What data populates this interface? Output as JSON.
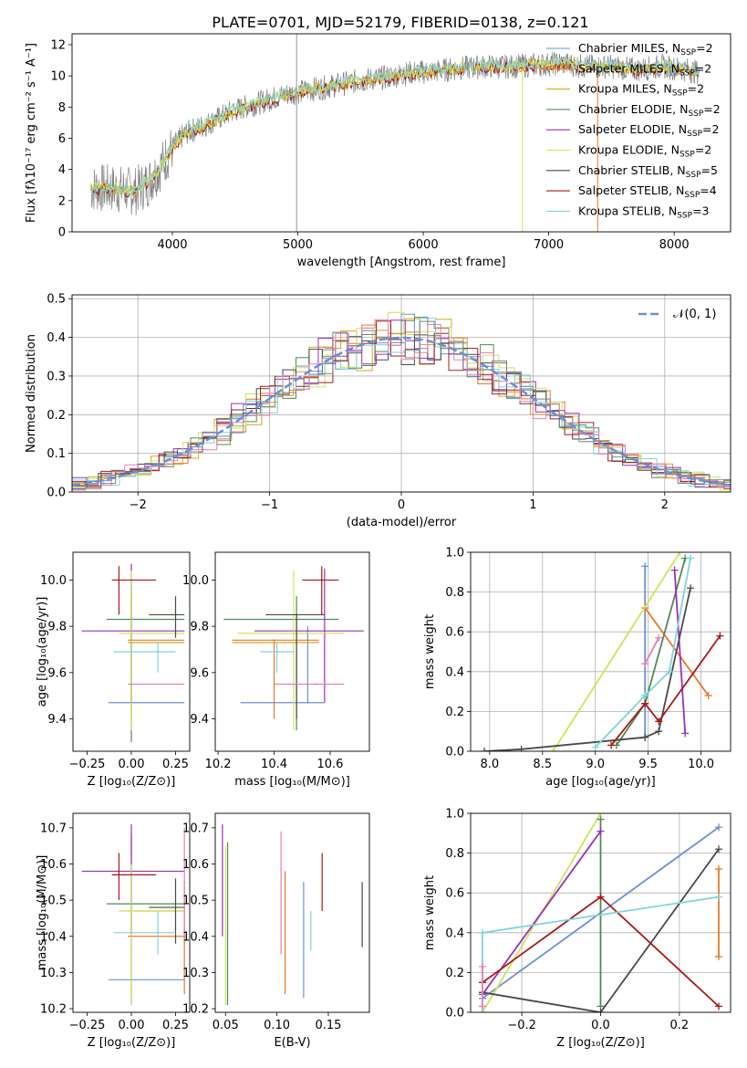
{
  "title": "PLATE=0701, MJD=52179, FIBERID=0138, z=0.121",
  "colors": {
    "Chabrier MILES": "#6a8fd8",
    "Salpeter MILES": "#e8792a",
    "Kroupa MILES": "#d9a521",
    "Chabrier ELODIE": "#4f8a5a",
    "Salpeter ELODIE": "#9b30b8",
    "Kroupa ELODIE": "#cfe35a",
    "Chabrier STELIB": "#4a4a4a",
    "Salpeter STELIB": "#a81a1a",
    "Kroupa STELIB": "#80d4dc",
    "Pink": "#e87fb8",
    "Gray": "#7f7f7f"
  },
  "chart_data": [
    {
      "id": "spectrum",
      "type": "line",
      "title": "PLATE=0701, MJD=52179, FIBERID=0138, z=0.121",
      "xlabel": "wavelength [Angstrom, rest frame]",
      "ylabel": "Flux [fλ10⁻¹⁷ erg cm⁻² s⁻¹ A⁻¹]",
      "xlim": [
        3200,
        8450
      ],
      "ylim": [
        0,
        12.7
      ],
      "xticks": [
        "4000",
        "5000",
        "6000",
        "7000",
        "8000"
      ],
      "yticks": [
        "0",
        "2",
        "4",
        "6",
        "8",
        "10",
        "12"
      ],
      "grid": false,
      "legend_position": "upper right",
      "legend": [
        {
          "label": "Chabrier MILES, N",
          "sub": "SSP",
          "suffix": "=2"
        },
        {
          "label": "Salpeter MILES, N",
          "sub": "SSP",
          "suffix": "=2"
        },
        {
          "label": "Kroupa MILES, N",
          "sub": "SSP",
          "suffix": "=2"
        },
        {
          "label": "Chabrier ELODIE, N",
          "sub": "SSP",
          "suffix": "=2"
        },
        {
          "label": "Salpeter ELODIE, N",
          "sub": "SSP",
          "suffix": "=2"
        },
        {
          "label": "Kroupa ELODIE, N",
          "sub": "SSP",
          "suffix": "=2"
        },
        {
          "label": "Chabrier STELIB, N",
          "sub": "SSP",
          "suffix": "=5"
        },
        {
          "label": "Salpeter STELIB, N",
          "sub": "SSP",
          "suffix": "=4"
        },
        {
          "label": "Kroupa STELIB, N",
          "sub": "SSP",
          "suffix": "=3"
        }
      ],
      "continuum": [
        [
          3350,
          2.8
        ],
        [
          3500,
          2.8
        ],
        [
          3700,
          2.6
        ],
        [
          3800,
          3.1
        ],
        [
          3900,
          4.1
        ],
        [
          4000,
          5.4
        ],
        [
          4100,
          6.3
        ],
        [
          4300,
          7.0
        ],
        [
          4500,
          7.8
        ],
        [
          4700,
          8.3
        ],
        [
          4900,
          8.8
        ],
        [
          5100,
          9.1
        ],
        [
          5300,
          9.4
        ],
        [
          5500,
          9.7
        ],
        [
          5700,
          9.9
        ],
        [
          5900,
          10.2
        ],
        [
          6100,
          10.3
        ],
        [
          6300,
          10.5
        ],
        [
          6500,
          10.6
        ],
        [
          6700,
          10.6
        ],
        [
          6900,
          10.7
        ],
        [
          7100,
          10.8
        ],
        [
          7300,
          10.6
        ],
        [
          7500,
          10.6
        ],
        [
          7700,
          10.4
        ],
        [
          7900,
          10.6
        ],
        [
          8100,
          10.4
        ],
        [
          8200,
          10.2
        ]
      ]
    },
    {
      "id": "residuals",
      "type": "histogram",
      "xlabel": "(data-model)/error",
      "ylabel": "Normed distribution",
      "xlim": [
        -2.5,
        2.5
      ],
      "ylim": [
        0,
        0.51
      ],
      "xticks": [
        "−2",
        "−1",
        "0",
        "1",
        "2"
      ],
      "yticks": [
        "0.0",
        "0.1",
        "0.2",
        "0.3",
        "0.4",
        "0.5"
      ],
      "grid": true,
      "legend_position": "upper right",
      "reference_curve": "𝒩(0, 1)"
    },
    {
      "id": "age_vs_Z",
      "type": "scatter",
      "xlabel": "Z [log₁₀(Z/Z⊙)]",
      "ylabel": "age  [log₁₀(age/yr)]",
      "xlim": [
        -0.33,
        0.33
      ],
      "ylim": [
        9.26,
        10.12
      ],
      "xticks": [
        "−0.25",
        "0.00",
        "0.25"
      ],
      "yticks": [
        "9.4",
        "9.6",
        "9.8",
        "10.0"
      ],
      "points": [
        {
          "c": "Chabrier MILES",
          "x": 0.0,
          "xe": [
            -0.13,
            0.3
          ],
          "y": 9.47,
          "ye": [
            9.47,
            9.47
          ]
        },
        {
          "c": "Salpeter MILES",
          "x": 0.0,
          "xe": [
            -0.02,
            0.3
          ],
          "y": 9.74,
          "ye": [
            9.4,
            9.93
          ]
        },
        {
          "c": "Kroupa MILES",
          "x": 0.0,
          "xe": [
            -0.02,
            0.3
          ],
          "y": 9.73,
          "ye": [
            9.73,
            9.73
          ]
        },
        {
          "c": "Chabrier ELODIE",
          "x": 0.0,
          "xe": [
            -0.14,
            0.3
          ],
          "y": 9.83,
          "ye": [
            9.3,
            10.0
          ]
        },
        {
          "c": "Salpeter ELODIE",
          "x": 0.0,
          "xe": [
            -0.28,
            0.3
          ],
          "y": 9.78,
          "ye": [
            9.47,
            10.07
          ]
        },
        {
          "c": "Kroupa ELODIE",
          "x": 0.0,
          "xe": [
            -0.07,
            0.3
          ],
          "y": 9.77,
          "ye": [
            9.35,
            10.04
          ]
        },
        {
          "c": "Chabrier STELIB",
          "x": 0.25,
          "xe": [
            0.1,
            0.3
          ],
          "y": 9.85,
          "ye": [
            9.75,
            9.93
          ]
        },
        {
          "c": "Salpeter STELIB",
          "x": -0.07,
          "xe": [
            -0.11,
            0.14
          ],
          "y": 10.0,
          "ye": [
            9.85,
            10.06
          ]
        },
        {
          "c": "Kroupa STELIB",
          "x": 0.15,
          "xe": [
            -0.1,
            0.25
          ],
          "y": 9.69,
          "ye": [
            9.6,
            9.73
          ]
        },
        {
          "c": "Pink",
          "x": 0.0,
          "xe": [
            -0.02,
            0.3
          ],
          "y": 9.55,
          "ye": [
            9.55,
            9.55
          ]
        }
      ]
    },
    {
      "id": "age_vs_mass",
      "type": "scatter",
      "xlabel": "mass [log₁₀(M/M⊙)]",
      "ylabel": "",
      "xlim": [
        10.19,
        10.74
      ],
      "ylim": [
        9.26,
        10.12
      ],
      "xticks": [
        "10.2",
        "10.4",
        "10.6"
      ],
      "yticks": [
        "9.4",
        "9.6",
        "9.8",
        "10.0"
      ],
      "points": [
        {
          "c": "Chabrier MILES",
          "x": 10.52,
          "xe": [
            10.28,
            10.58
          ],
          "y": 9.47,
          "ye": [
            9.47,
            9.8
          ]
        },
        {
          "c": "Salpeter MILES",
          "x": 10.4,
          "xe": [
            10.25,
            10.56
          ],
          "y": 9.74,
          "ye": [
            9.4,
            9.74
          ]
        },
        {
          "c": "Kroupa MILES",
          "x": 10.47,
          "xe": [
            10.25,
            10.56
          ],
          "y": 9.73,
          "ye": [
            9.73,
            9.73
          ]
        },
        {
          "c": "Chabrier ELODIE",
          "x": 10.48,
          "xe": [
            10.22,
            10.63
          ],
          "y": 9.83,
          "ye": [
            9.35,
            9.93
          ]
        },
        {
          "c": "Salpeter ELODIE",
          "x": 10.58,
          "xe": [
            10.33,
            10.72
          ],
          "y": 9.78,
          "ye": [
            9.47,
            10.05
          ]
        },
        {
          "c": "Kroupa ELODIE",
          "x": 10.47,
          "xe": [
            10.27,
            10.65
          ],
          "y": 9.77,
          "ye": [
            9.35,
            10.04
          ]
        },
        {
          "c": "Chabrier STELIB",
          "x": 10.48,
          "xe": [
            10.37,
            10.58
          ],
          "y": 9.85,
          "ye": [
            9.4,
            9.85
          ]
        },
        {
          "c": "Salpeter STELIB",
          "x": 10.57,
          "xe": [
            10.5,
            10.63
          ],
          "y": 10.0,
          "ye": [
            9.85,
            10.06
          ]
        },
        {
          "c": "Kroupa STELIB",
          "x": 10.41,
          "xe": [
            10.35,
            10.47
          ],
          "y": 9.69,
          "ye": [
            9.6,
            9.73
          ]
        },
        {
          "c": "Pink",
          "x": 10.55,
          "xe": [
            10.4,
            10.65
          ],
          "y": 9.55,
          "ye": [
            9.55,
            9.55
          ]
        }
      ]
    },
    {
      "id": "massweight_vs_age",
      "type": "line",
      "xlabel": "age  [log₁₀(age/yr)]",
      "ylabel": "mass weight",
      "xlim": [
        7.82,
        10.28
      ],
      "ylim": [
        0.0,
        1.0
      ],
      "xticks": [
        "8.0",
        "8.5",
        "9.0",
        "9.5",
        "10.0"
      ],
      "yticks": [
        "0.0",
        "0.2",
        "0.4",
        "0.6",
        "0.8",
        "1.0"
      ],
      "grid": true,
      "series": [
        {
          "c": "Chabrier MILES",
          "x": [
            9.47,
            9.47
          ],
          "y": [
            0.07,
            0.93
          ]
        },
        {
          "c": "Salpeter MILES",
          "x": [
            9.47,
            10.07
          ],
          "y": [
            0.72,
            0.28
          ]
        },
        {
          "c": "Kroupa ELODIE",
          "x": [
            8.6,
            9.8
          ],
          "y": [
            0.0,
            1.0
          ]
        },
        {
          "c": "Chabrier ELODIE",
          "x": [
            9.2,
            9.47,
            9.85
          ],
          "y": [
            0.03,
            0.24,
            0.97
          ]
        },
        {
          "c": "Salpeter ELODIE",
          "x": [
            9.75,
            9.85
          ],
          "y": [
            0.91,
            0.09
          ]
        },
        {
          "c": "Chabrier STELIB",
          "x": [
            7.95,
            8.3,
            9.47,
            9.6,
            9.9
          ],
          "y": [
            0.0,
            0.01,
            0.07,
            0.1,
            0.82
          ]
        },
        {
          "c": "Salpeter STELIB",
          "x": [
            9.15,
            9.47,
            9.6,
            10.18
          ],
          "y": [
            0.03,
            0.24,
            0.15,
            0.58
          ]
        },
        {
          "c": "Kroupa STELIB",
          "x": [
            9.0,
            9.47,
            9.7,
            9.9
          ],
          "y": [
            0.02,
            0.28,
            0.4,
            0.97
          ]
        },
        {
          "c": "Pink",
          "x": [
            9.47,
            9.6
          ],
          "y": [
            0.44,
            0.57
          ]
        }
      ]
    },
    {
      "id": "mass_vs_Z",
      "type": "scatter",
      "xlabel": "Z [log₁₀(Z/Z⊙)]",
      "ylabel": "mass [log₁₀(M/M⊙)]",
      "xlim": [
        -0.33,
        0.33
      ],
      "ylim": [
        10.19,
        10.74
      ],
      "xticks": [
        "−0.25",
        "0.00",
        "0.25"
      ],
      "yticks": [
        "10.2",
        "10.3",
        "10.4",
        "10.5",
        "10.6",
        "10.7"
      ],
      "points": [
        {
          "c": "Chabrier MILES",
          "x": 0.0,
          "xe": [
            -0.13,
            0.3
          ],
          "y": 10.28,
          "ye": [
            10.28,
            10.28
          ]
        },
        {
          "c": "Salpeter MILES",
          "x": 0.3,
          "xe": [
            -0.02,
            0.3
          ],
          "y": 10.4,
          "ye": [
            10.24,
            10.54
          ]
        },
        {
          "c": "Kroupa MILES",
          "x": 0.0,
          "xe": [
            -0.02,
            0.3
          ],
          "y": 10.47,
          "ye": [
            10.47,
            10.47
          ]
        },
        {
          "c": "Chabrier ELODIE",
          "x": 0.0,
          "xe": [
            -0.14,
            0.3
          ],
          "y": 10.49,
          "ye": [
            10.21,
            10.68
          ]
        },
        {
          "c": "Salpeter ELODIE",
          "x": 0.0,
          "xe": [
            -0.28,
            0.3
          ],
          "y": 10.58,
          "ye": [
            10.41,
            10.71
          ]
        },
        {
          "c": "Kroupa ELODIE",
          "x": 0.0,
          "xe": [
            -0.07,
            0.3
          ],
          "y": 10.47,
          "ye": [
            10.21,
            10.6
          ]
        },
        {
          "c": "Chabrier STELIB",
          "x": 0.25,
          "xe": [
            0.1,
            0.3
          ],
          "y": 10.48,
          "ye": [
            10.38,
            10.56
          ]
        },
        {
          "c": "Salpeter STELIB",
          "x": -0.07,
          "xe": [
            -0.11,
            0.14
          ],
          "y": 10.57,
          "ye": [
            10.5,
            10.63
          ]
        },
        {
          "c": "Kroupa STELIB",
          "x": 0.15,
          "xe": [
            -0.1,
            0.25
          ],
          "y": 10.41,
          "ye": [
            10.35,
            10.47
          ]
        },
        {
          "c": "Pink",
          "x": 0.3,
          "xe": [
            0.3,
            0.3
          ],
          "y": 10.55,
          "ye": [
            10.4,
            10.7
          ]
        }
      ]
    },
    {
      "id": "mass_vs_ebv",
      "type": "scatter",
      "xlabel": "E(B-V)",
      "ylabel": "",
      "xlim": [
        0.04,
        0.19
      ],
      "ylim": [
        10.19,
        10.74
      ],
      "xticks": [
        "0.05",
        "0.10",
        "0.15"
      ],
      "yticks": [
        "10.2",
        "10.3",
        "10.4",
        "10.5",
        "10.6",
        "10.7"
      ],
      "points": [
        {
          "c": "Chabrier ELODIE",
          "x": 0.052,
          "ye": [
            10.21,
            10.66
          ]
        },
        {
          "c": "Kroupa ELODIE",
          "x": 0.05,
          "ye": [
            10.21,
            10.65
          ]
        },
        {
          "c": "Salpeter ELODIE",
          "x": 0.047,
          "ye": [
            10.4,
            10.71
          ]
        },
        {
          "c": "Pink",
          "x": 0.104,
          "ye": [
            10.35,
            10.69
          ]
        },
        {
          "c": "Salpeter MILES",
          "x": 0.108,
          "ye": [
            10.24,
            10.58
          ]
        },
        {
          "c": "Chabrier MILES",
          "x": 0.126,
          "ye": [
            10.23,
            10.55
          ]
        },
        {
          "c": "Kroupa STELIB",
          "x": 0.133,
          "ye": [
            10.36,
            10.47
          ]
        },
        {
          "c": "Salpeter STELIB",
          "x": 0.144,
          "ye": [
            10.47,
            10.63
          ]
        },
        {
          "c": "Chabrier STELIB",
          "x": 0.183,
          "ye": [
            10.37,
            10.55
          ]
        }
      ]
    },
    {
      "id": "massweight_vs_Z",
      "type": "line",
      "xlabel": "Z [log₁₀(Z/Z⊙)]",
      "ylabel": "mass weight",
      "xlim": [
        -0.33,
        0.33
      ],
      "ylim": [
        0.0,
        1.0
      ],
      "xticks": [
        "−0.2",
        "0.0",
        "0.2"
      ],
      "yticks": [
        "0.0",
        "0.2",
        "0.4",
        "0.6",
        "0.8",
        "1.0"
      ],
      "grid": true,
      "series": [
        {
          "c": "Chabrier MILES",
          "x": [
            -0.3,
            0.3
          ],
          "y": [
            0.07,
            0.93
          ]
        },
        {
          "c": "Salpeter MILES",
          "x": [
            0.3,
            0.3
          ],
          "y": [
            0.28,
            0.72
          ]
        },
        {
          "c": "Kroupa ELODIE",
          "x": [
            -0.3,
            0.0
          ],
          "y": [
            0.0,
            1.0
          ]
        },
        {
          "c": "Chabrier ELODIE",
          "x": [
            0.0,
            0.0
          ],
          "y": [
            0.03,
            0.97
          ]
        },
        {
          "c": "Salpeter ELODIE",
          "x": [
            -0.3,
            0.0
          ],
          "y": [
            0.09,
            0.91
          ]
        },
        {
          "c": "Chabrier STELIB",
          "x": [
            -0.3,
            0.0,
            0.3
          ],
          "y": [
            0.1,
            0.0,
            0.82
          ]
        },
        {
          "c": "Salpeter STELIB",
          "x": [
            -0.3,
            0.0,
            0.3
          ],
          "y": [
            0.15,
            0.58,
            0.03
          ]
        },
        {
          "c": "Kroupa STELIB",
          "x": [
            -0.3,
            -0.3,
            0.3
          ],
          "y": [
            0.0,
            0.4,
            0.58
          ]
        },
        {
          "c": "Pink",
          "x": [
            -0.3,
            -0.3
          ],
          "y": [
            0.03,
            0.23
          ]
        }
      ]
    }
  ]
}
